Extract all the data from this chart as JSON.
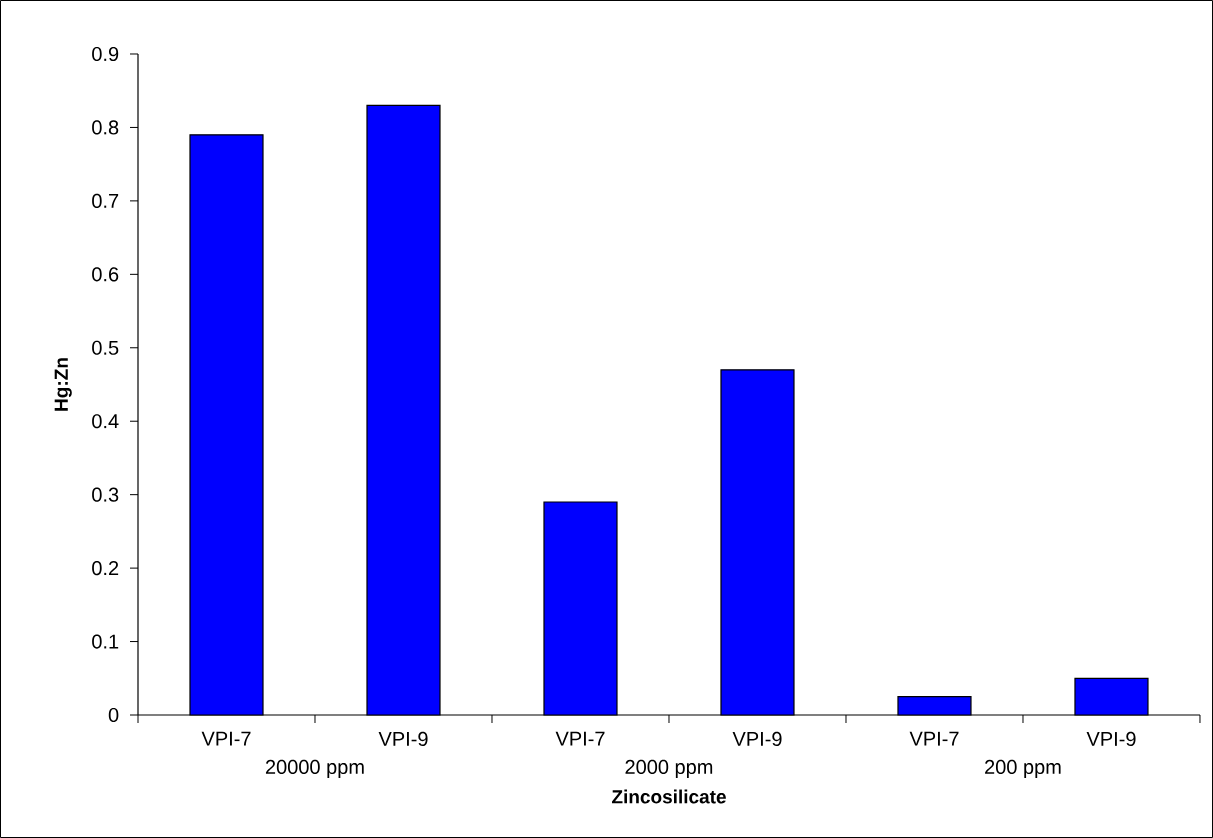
{
  "chart_data": {
    "type": "bar",
    "xlabel": "Zincosilicate",
    "ylabel": "Hg:Zn",
    "categories": [
      "VPI-7",
      "VPI-9",
      "VPI-7",
      "VPI-9",
      "VPI-7",
      "VPI-9"
    ],
    "values": [
      0.79,
      0.83,
      0.29,
      0.47,
      0.025,
      0.05
    ],
    "color": "#0000ff",
    "ylim": [
      0,
      0.9
    ],
    "yticks": [
      0,
      0.1,
      0.2,
      0.3,
      0.4,
      0.5,
      0.6,
      0.7,
      0.8,
      0.9
    ],
    "annotations": [
      "20000 ppm",
      "2000 ppm",
      "200 ppm"
    ]
  }
}
